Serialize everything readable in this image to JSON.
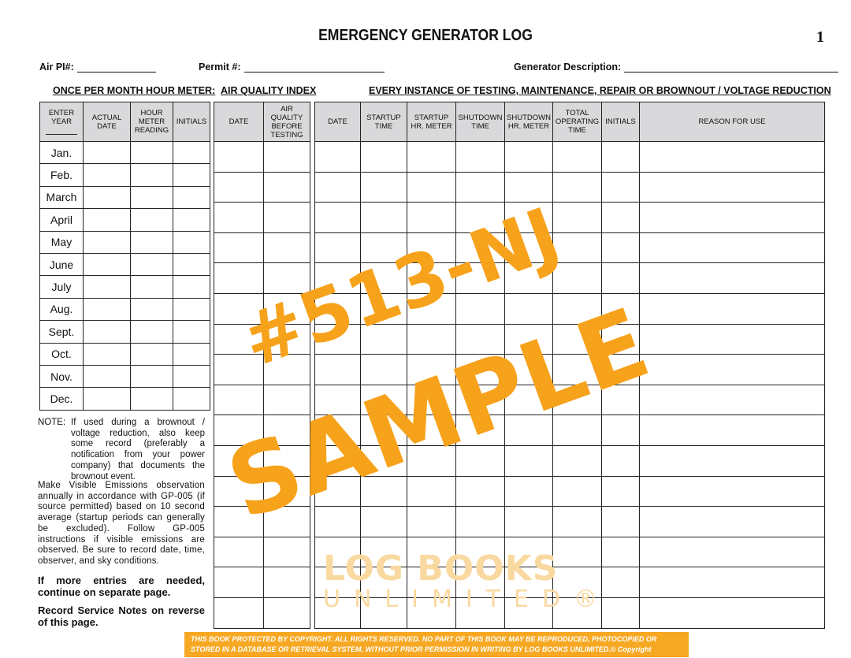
{
  "title": "EMERGENCY GENERATOR LOG",
  "page_number": "1",
  "fields": {
    "air_pi": "Air PI#:",
    "permit": "Permit #:",
    "generator": "Generator Description:"
  },
  "sections": {
    "hour_meter": "ONCE PER MONTH HOUR METER:",
    "aqi": "AIR QUALITY INDEX",
    "instances": "EVERY INSTANCE OF TESTING, MAINTENANCE, REPAIR OR BROWNOUT / VOLTAGE REDUCTION"
  },
  "hour_meter_table": {
    "headers": [
      "ENTER YEAR",
      "ACTUAL DATE",
      "HOUR METER READING",
      "INITIALS"
    ],
    "months": [
      "Jan.",
      "Feb.",
      "March",
      "April",
      "May",
      "June",
      "July",
      "Aug.",
      "Sept.",
      "Oct.",
      "Nov.",
      "Dec."
    ]
  },
  "aqi_table": {
    "headers": [
      "DATE",
      "AIR QUALITY BEFORE TESTING"
    ]
  },
  "instance_table": {
    "headers": [
      "DATE",
      "STARTUP TIME",
      "STARTUP HR. METER",
      "SHUTDOWN TIME",
      "SHUTDOWN HR. METER",
      "TOTAL OPERATING TIME",
      "INITIALS",
      "REASON FOR USE"
    ]
  },
  "notes": {
    "note_label": "NOTE:",
    "note": "If used during a brownout / voltage reduction, also keep some record (preferably a notification from your power company) that documents the brownout event.",
    "visible_emissions": "Make Visible Emissions observation annually in accordance with GP-005 (if source permitted) based on 10 second average (startup periods can generally be excluded). Follow GP-005 instructions if visible emissions are observed. Be sure to record date, time, observer, and sky conditions.",
    "more_entries": "If more entries are needed, continue on separate page.",
    "service_notes": "Record Service Notes on reverse of this page."
  },
  "watermark": {
    "line1": "#513-NJ",
    "line2": "SAMPLE",
    "logo_line1": "LOG BOOKS",
    "logo_line2": "UNLIMITED®"
  },
  "footer": "THIS BOOK PROTECTED BY COPYRIGHT. ALL RIGHTS RESERVED. NO PART OF THIS BOOK MAY BE REPRODUCED, PHOTOCOPIED OR STORED IN A DATABASE OR RETRIEVAL SYSTEM, WITHOUT PRIOR PERMISSION IN WRITING BY LOG BOOKS UNLIMITED.© Copyright",
  "colors": {
    "watermark": "#f7a21b",
    "header_fill": "#d9d9db",
    "footer_bg": "#f7a823"
  }
}
